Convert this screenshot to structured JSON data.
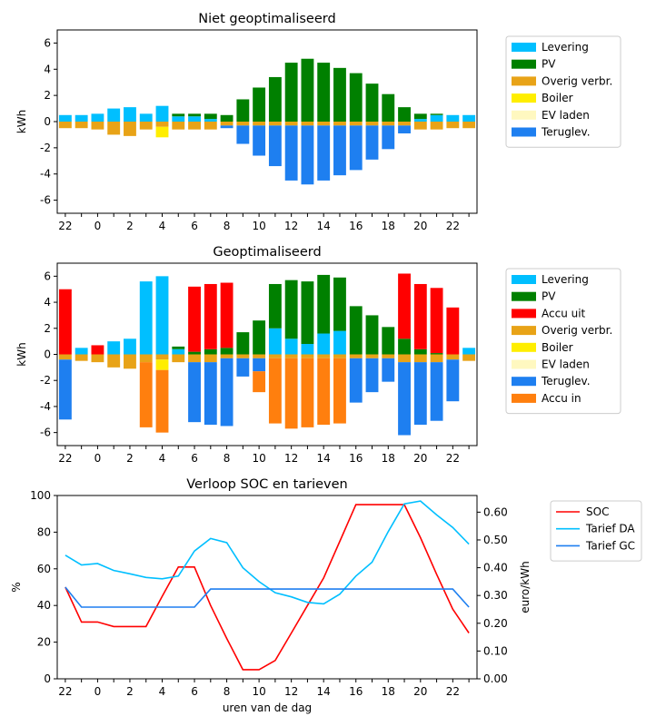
{
  "chart_data": [
    {
      "type": "bar",
      "title": "Niet geoptimaliseerd",
      "xlabel": "",
      "ylabel": "kWh",
      "ylim": [
        -7,
        7
      ],
      "yticks": [
        -6,
        -4,
        -2,
        0,
        2,
        4,
        6
      ],
      "xticks": [
        "22",
        "0",
        "2",
        "4",
        "6",
        "8",
        "10",
        "12",
        "14",
        "16",
        "18",
        "20",
        "22"
      ],
      "categories": [
        "22",
        "23",
        "0",
        "1",
        "2",
        "3",
        "4",
        "5",
        "6",
        "7",
        "8",
        "9",
        "10",
        "11",
        "12",
        "13",
        "14",
        "15",
        "16",
        "17",
        "18",
        "19",
        "20",
        "21",
        "22",
        "23"
      ],
      "positive_series": [
        {
          "name": "Levering",
          "color": "#00bfff",
          "values": [
            0.5,
            0.5,
            0.6,
            1.0,
            1.1,
            0.6,
            1.2,
            0.4,
            0.4,
            0.2,
            0.0,
            0.0,
            0.0,
            0.0,
            0.0,
            0.0,
            0.0,
            0.0,
            0.0,
            0.0,
            0.0,
            0.0,
            0.2,
            0.5,
            0.5,
            0.5
          ]
        },
        {
          "name": "PV",
          "color": "#008000",
          "values": [
            0.0,
            0.0,
            0.0,
            0.0,
            0.0,
            0.0,
            0.0,
            0.2,
            0.2,
            0.4,
            0.5,
            1.7,
            2.6,
            3.4,
            4.5,
            4.8,
            4.5,
            4.1,
            3.7,
            2.9,
            2.1,
            1.1,
            0.4,
            0.1,
            0.0,
            0.0
          ]
        }
      ],
      "negative_series": [
        {
          "name": "Overig verbr.",
          "color": "#e8a317",
          "values": [
            0.5,
            0.5,
            0.6,
            1.0,
            1.1,
            0.6,
            0.4,
            0.6,
            0.6,
            0.6,
            0.3,
            0.3,
            0.3,
            0.3,
            0.3,
            0.3,
            0.3,
            0.3,
            0.3,
            0.3,
            0.3,
            0.3,
            0.6,
            0.6,
            0.5,
            0.5
          ]
        },
        {
          "name": "Boiler",
          "color": "#ffee00",
          "values": [
            0,
            0,
            0,
            0,
            0,
            0,
            0.8,
            0,
            0,
            0,
            0,
            0,
            0,
            0,
            0,
            0,
            0,
            0,
            0,
            0,
            0,
            0,
            0,
            0,
            0,
            0
          ]
        },
        {
          "name": "EV laden",
          "color": "#fff8c0",
          "values": [
            0,
            0,
            0,
            0,
            0,
            0,
            0,
            0,
            0,
            0,
            0,
            0,
            0,
            0,
            0,
            0,
            0,
            0,
            0,
            0,
            0,
            0,
            0,
            0,
            0,
            0
          ]
        },
        {
          "name": "Teruglev.",
          "color": "#1e7ff0",
          "values": [
            0,
            0,
            0,
            0,
            0,
            0,
            0,
            0,
            0,
            0,
            0.2,
            1.4,
            2.3,
            3.1,
            4.2,
            4.5,
            4.2,
            3.8,
            3.4,
            2.6,
            1.8,
            0.6,
            0,
            0,
            0,
            0
          ]
        }
      ],
      "legend": [
        "Levering",
        "PV",
        "Overig verbr.",
        "Boiler",
        "EV laden",
        "Teruglev."
      ],
      "legend_position": "outside-right"
    },
    {
      "type": "bar",
      "title": "Geoptimaliseerd",
      "xlabel": "",
      "ylabel": "kWh",
      "ylim": [
        -7,
        7
      ],
      "yticks": [
        -6,
        -4,
        -2,
        0,
        2,
        4,
        6
      ],
      "xticks": [
        "22",
        "0",
        "2",
        "4",
        "6",
        "8",
        "10",
        "12",
        "14",
        "16",
        "18",
        "20",
        "22"
      ],
      "categories": [
        "22",
        "23",
        "0",
        "1",
        "2",
        "3",
        "4",
        "5",
        "6",
        "7",
        "8",
        "9",
        "10",
        "11",
        "12",
        "13",
        "14",
        "15",
        "16",
        "17",
        "18",
        "19",
        "20",
        "21",
        "22",
        "23"
      ],
      "positive_series": [
        {
          "name": "Levering",
          "color": "#00bfff",
          "values": [
            0.0,
            0.5,
            0.0,
            1.0,
            1.2,
            5.6,
            6.0,
            0.4,
            0.0,
            0.0,
            0.0,
            0.0,
            0.0,
            2.0,
            1.2,
            0.8,
            1.6,
            1.8,
            0.0,
            0.0,
            0.0,
            0.0,
            0.0,
            0.0,
            0.0,
            0.5
          ]
        },
        {
          "name": "PV",
          "color": "#008000",
          "values": [
            0.0,
            0.0,
            0.0,
            0.0,
            0.0,
            0.0,
            0.0,
            0.2,
            0.2,
            0.4,
            0.5,
            1.7,
            2.6,
            3.4,
            4.5,
            4.8,
            4.5,
            4.1,
            3.7,
            3.0,
            2.1,
            1.2,
            0.4,
            0.1,
            0.0,
            0.0
          ]
        },
        {
          "name": "Accu uit",
          "color": "#ff0000",
          "values": [
            5.0,
            0.0,
            0.7,
            0.0,
            0.0,
            0.0,
            0.0,
            0.0,
            5.0,
            5.0,
            5.0,
            0.0,
            0.0,
            0.0,
            0.0,
            0.0,
            0.0,
            0.0,
            0.0,
            0.0,
            0.0,
            5.0,
            5.0,
            5.0,
            3.6,
            0.0
          ]
        }
      ],
      "negative_series": [
        {
          "name": "Overig verbr.",
          "color": "#e8a317",
          "values": [
            0.4,
            0.5,
            0.6,
            1.0,
            1.1,
            0.6,
            0.4,
            0.6,
            0.6,
            0.6,
            0.3,
            0.3,
            0.3,
            0.3,
            0.3,
            0.3,
            0.3,
            0.3,
            0.3,
            0.3,
            0.3,
            0.6,
            0.6,
            0.6,
            0.4,
            0.5
          ]
        },
        {
          "name": "Boiler",
          "color": "#ffee00",
          "values": [
            0,
            0,
            0,
            0,
            0,
            0,
            0.8,
            0,
            0,
            0,
            0,
            0,
            0,
            0,
            0,
            0,
            0,
            0,
            0,
            0,
            0,
            0,
            0,
            0,
            0,
            0
          ]
        },
        {
          "name": "EV laden",
          "color": "#fff8c0",
          "values": [
            0,
            0,
            0,
            0,
            0,
            0,
            0,
            0,
            0,
            0,
            0,
            0,
            0,
            0,
            0,
            0,
            0,
            0,
            0,
            0,
            0,
            0,
            0,
            0,
            0,
            0
          ]
        },
        {
          "name": "Teruglev.",
          "color": "#1e7ff0",
          "values": [
            4.6,
            0,
            0,
            0,
            0,
            0,
            0,
            0,
            4.6,
            4.8,
            5.2,
            1.4,
            1.0,
            0,
            0,
            0,
            0,
            0,
            3.4,
            2.6,
            1.8,
            5.6,
            4.8,
            4.5,
            3.2,
            0
          ]
        },
        {
          "name": "Accu in",
          "color": "#ff7f0e",
          "values": [
            0,
            0,
            0,
            0,
            0,
            5.0,
            4.8,
            0,
            0,
            0,
            0,
            0,
            1.6,
            5.0,
            5.4,
            5.3,
            5.1,
            5.0,
            0,
            0,
            0,
            0,
            0,
            0,
            0,
            0
          ]
        }
      ],
      "legend": [
        "Levering",
        "PV",
        "Accu uit",
        "Overig verbr.",
        "Boiler",
        "EV laden",
        "Teruglev.",
        "Accu in"
      ],
      "legend_position": "outside-right"
    },
    {
      "type": "line",
      "title": "Verloop SOC en tarieven",
      "xlabel": "uren van de dag",
      "ylabel": "%",
      "ylabel_right": "euro/kWh",
      "ylim": [
        0,
        100
      ],
      "ylim_right": [
        0,
        0.66
      ],
      "yticks": [
        0,
        20,
        40,
        60,
        80,
        100
      ],
      "yticks_right": [
        "0.00",
        "0.10",
        "0.20",
        "0.30",
        "0.40",
        "0.50",
        "0.60"
      ],
      "xticks": [
        "22",
        "0",
        "2",
        "4",
        "6",
        "8",
        "10",
        "12",
        "14",
        "16",
        "18",
        "20",
        "22"
      ],
      "x": [
        22,
        23,
        0,
        1,
        2,
        3,
        4,
        5,
        6,
        7,
        8,
        9,
        10,
        11,
        12,
        13,
        14,
        15,
        16,
        17,
        18,
        19,
        20,
        21,
        22,
        23
      ],
      "series": [
        {
          "name": "SOC",
          "color": "#ff0000",
          "axis": "left",
          "values": [
            50,
            31,
            31,
            28.5,
            28.5,
            28.5,
            45,
            61,
            61,
            40,
            22,
            5,
            5,
            10,
            25,
            40,
            55,
            75,
            95,
            95,
            95,
            95,
            77,
            57,
            38,
            25
          ]
        },
        {
          "name": "Tarief DA",
          "color": "#00bfff",
          "axis": "right",
          "values": [
            0.445,
            0.41,
            0.415,
            0.39,
            0.378,
            0.365,
            0.36,
            0.37,
            0.46,
            0.505,
            0.49,
            0.4,
            0.35,
            0.31,
            0.295,
            0.275,
            0.27,
            0.305,
            0.37,
            0.42,
            0.53,
            0.63,
            0.64,
            0.59,
            0.545,
            0.485
          ]
        },
        {
          "name": "Tarief GC",
          "color": "#1e7ff0",
          "axis": "right",
          "values": [
            0.33,
            0.258,
            0.258,
            0.258,
            0.258,
            0.258,
            0.258,
            0.258,
            0.258,
            0.323,
            0.323,
            0.323,
            0.323,
            0.323,
            0.323,
            0.323,
            0.323,
            0.323,
            0.323,
            0.323,
            0.323,
            0.323,
            0.323,
            0.323,
            0.323,
            0.258
          ]
        }
      ],
      "legend": [
        "SOC",
        "Tarief DA",
        "Tarief GC"
      ],
      "legend_position": "outside-right"
    }
  ]
}
